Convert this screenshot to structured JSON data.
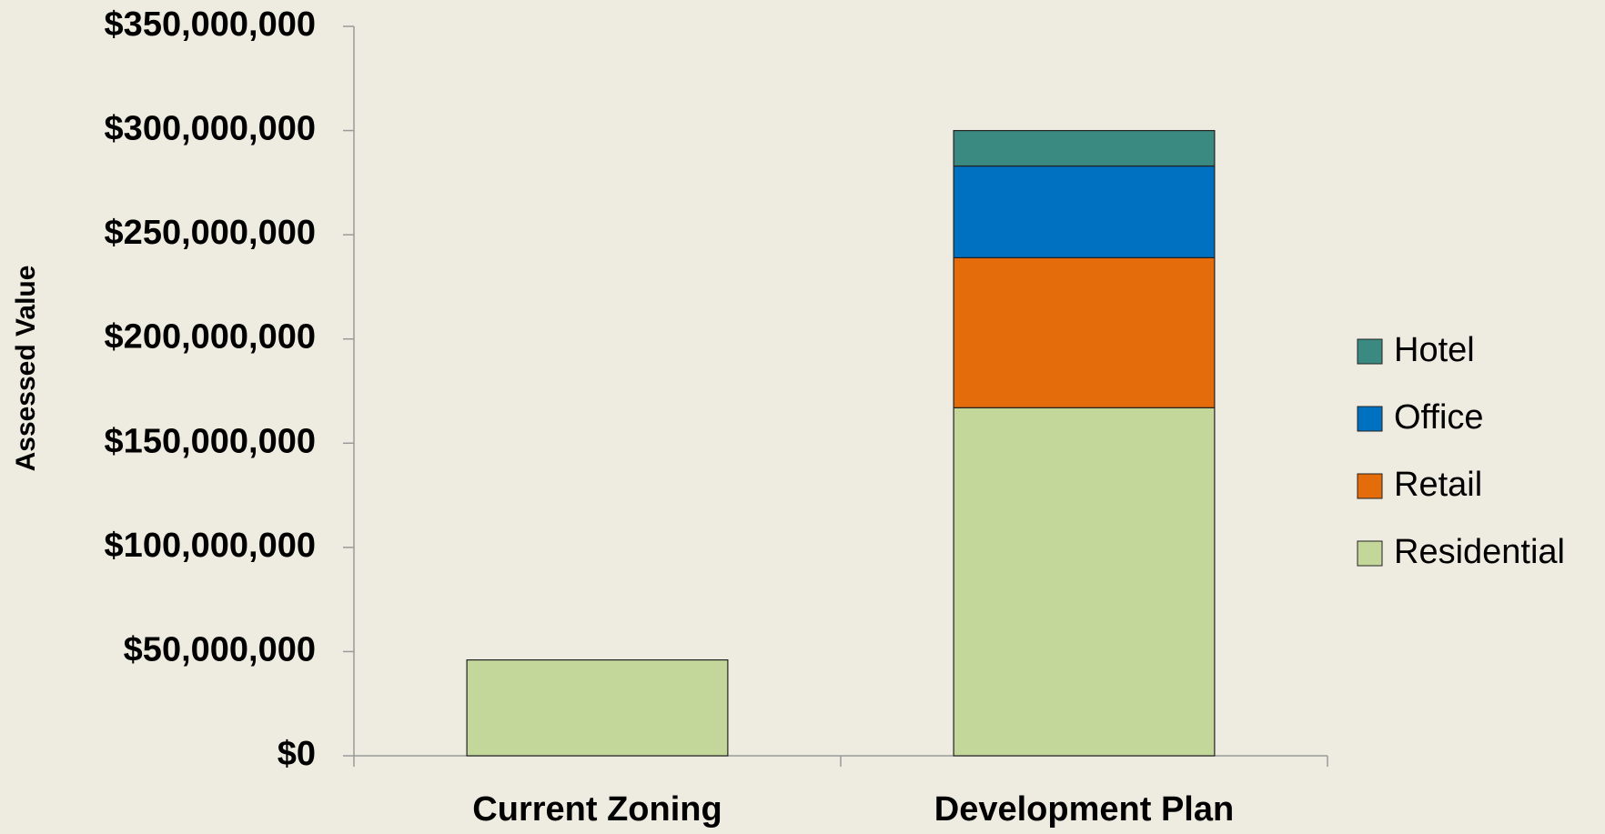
{
  "chart_data": {
    "type": "stacked_bar",
    "y_label": "Assessed Value",
    "categories": [
      "Current Zoning",
      "Development Plan"
    ],
    "series": [
      {
        "name": "Residential",
        "color": "#c4d79b",
        "values": [
          46000000,
          167000000
        ]
      },
      {
        "name": "Retail",
        "color": "#e46c0a",
        "values": [
          0,
          72000000
        ]
      },
      {
        "name": "Office",
        "color": "#0070c0",
        "values": [
          0,
          44000000
        ]
      },
      {
        "name": "Hotel",
        "color": "#3b8a82",
        "values": [
          0,
          17000000
        ]
      }
    ],
    "ylim": [
      0,
      350000000
    ],
    "yticks": [
      {
        "value": 0,
        "label": "$0"
      },
      {
        "value": 50000000,
        "label": "$50,000,000"
      },
      {
        "value": 100000000,
        "label": "$100,000,000"
      },
      {
        "value": 150000000,
        "label": "$150,000,000"
      },
      {
        "value": 200000000,
        "label": "$200,000,000"
      },
      {
        "value": 250000000,
        "label": "$250,000,000"
      },
      {
        "value": 300000000,
        "label": "$300,000,000"
      },
      {
        "value": 350000000,
        "label": "$350,000,000"
      }
    ],
    "grid": false,
    "legend": "right"
  }
}
